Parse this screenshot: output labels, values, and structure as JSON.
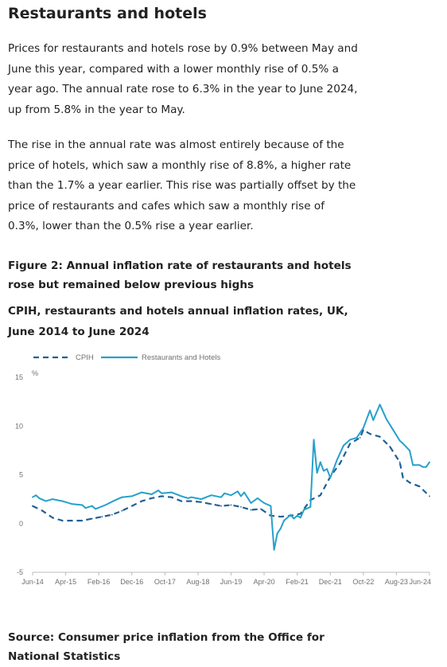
{
  "page": {
    "heading": "Restaurants and hotels",
    "paragraph1": "Prices for restaurants and hotels rose by 0.9% between May and June this year, compared with a lower monthly rise of 0.5% a year ago. The annual rate rose to 6.3% in the year to June 2024, up from 5.8% in the year to May.",
    "paragraph2": "The rise in the annual rate was almost entirely because of the price of hotels, which saw a monthly rise of 8.8%, a higher rate than the 1.7% a year earlier. This rise was partially offset by the price of restaurants and cafes which saw a monthly rise of 0.3%, lower than the 0.5% rise a year earlier.",
    "figure_title": "Figure 2: Annual inflation rate of restaurants and hotels rose but remained below previous highs",
    "figure_subtitle": "CPIH, restaurants and hotels annual inflation rates, UK, June 2014 to June 2024",
    "source": "Source: Consumer price inflation from the Office for National Statistics"
  },
  "chart_data": {
    "type": "line",
    "title": "",
    "xlabel": "",
    "ylabel": "%",
    "ylim": [
      -5,
      15
    ],
    "yticks": [
      -5,
      0,
      5,
      10,
      15
    ],
    "xticks": [
      "Jun-14",
      "Apr-15",
      "Feb-16",
      "Dec-16",
      "Oct-17",
      "Aug-18",
      "Jun-19",
      "Apr-20",
      "Feb-21",
      "Dec-21",
      "Oct-22",
      "Aug-23",
      "Jun-24"
    ],
    "x_start": "Jun-14",
    "x_end": "Jun-24",
    "grid": false,
    "legend_position": "top-left",
    "colors": {
      "cpih": "#206095",
      "restaurants": "#27a0cc",
      "axis": "#bbbbbb",
      "tick_text": "#707070"
    },
    "series": [
      {
        "name": "CPIH",
        "style": "dashed",
        "points": [
          [
            "Jun-14",
            1.8
          ],
          [
            "Sep-14",
            1.3
          ],
          [
            "Dec-14",
            0.6
          ],
          [
            "Mar-15",
            0.3
          ],
          [
            "Jun-15",
            0.3
          ],
          [
            "Sep-15",
            0.3
          ],
          [
            "Dec-15",
            0.5
          ],
          [
            "Mar-16",
            0.7
          ],
          [
            "Jun-16",
            0.9
          ],
          [
            "Sep-16",
            1.3
          ],
          [
            "Dec-16",
            1.8
          ],
          [
            "Mar-17",
            2.3
          ],
          [
            "Jun-17",
            2.6
          ],
          [
            "Sep-17",
            2.8
          ],
          [
            "Dec-17",
            2.7
          ],
          [
            "Mar-18",
            2.3
          ],
          [
            "Jun-18",
            2.3
          ],
          [
            "Sep-18",
            2.2
          ],
          [
            "Dec-18",
            2.0
          ],
          [
            "Mar-19",
            1.8
          ],
          [
            "Jun-19",
            1.9
          ],
          [
            "Sep-19",
            1.7
          ],
          [
            "Dec-19",
            1.4
          ],
          [
            "Mar-20",
            1.5
          ],
          [
            "Jun-20",
            0.8
          ],
          [
            "Sep-20",
            0.7
          ],
          [
            "Dec-20",
            0.8
          ],
          [
            "Mar-21",
            1.0
          ],
          [
            "Jun-21",
            2.4
          ],
          [
            "Sep-21",
            2.9
          ],
          [
            "Dec-21",
            4.8
          ],
          [
            "Mar-22",
            6.2
          ],
          [
            "Jun-22",
            8.2
          ],
          [
            "Sep-22",
            8.8
          ],
          [
            "Oct-22",
            9.6
          ],
          [
            "Dec-22",
            9.2
          ],
          [
            "Mar-23",
            8.9
          ],
          [
            "Jun-23",
            7.9
          ],
          [
            "Sep-23",
            6.3
          ],
          [
            "Oct-23",
            4.7
          ],
          [
            "Dec-23",
            4.2
          ],
          [
            "Mar-24",
            3.8
          ],
          [
            "Jun-24",
            2.8
          ]
        ]
      },
      {
        "name": "Restaurants and Hotels",
        "style": "solid",
        "points": [
          [
            "Jun-14",
            2.7
          ],
          [
            "Jul-14",
            2.9
          ],
          [
            "Aug-14",
            2.6
          ],
          [
            "Oct-14",
            2.3
          ],
          [
            "Dec-14",
            2.5
          ],
          [
            "Mar-15",
            2.3
          ],
          [
            "Jun-15",
            2.0
          ],
          [
            "Sep-15",
            1.9
          ],
          [
            "Oct-15",
            1.6
          ],
          [
            "Dec-15",
            1.8
          ],
          [
            "Jan-16",
            1.5
          ],
          [
            "Apr-16",
            1.9
          ],
          [
            "Jul-16",
            2.4
          ],
          [
            "Sep-16",
            2.7
          ],
          [
            "Dec-16",
            2.8
          ],
          [
            "Mar-17",
            3.2
          ],
          [
            "Jun-17",
            3.0
          ],
          [
            "Aug-17",
            3.4
          ],
          [
            "Sep-17",
            3.1
          ],
          [
            "Dec-17",
            3.2
          ],
          [
            "Mar-18",
            2.8
          ],
          [
            "May-18",
            2.6
          ],
          [
            "Jun-18",
            2.7
          ],
          [
            "Sep-18",
            2.5
          ],
          [
            "Dec-18",
            2.9
          ],
          [
            "Mar-19",
            2.7
          ],
          [
            "Apr-19",
            3.1
          ],
          [
            "Jun-19",
            2.9
          ],
          [
            "Aug-19",
            3.3
          ],
          [
            "Sep-19",
            2.8
          ],
          [
            "Oct-19",
            3.2
          ],
          [
            "Dec-19",
            2.1
          ],
          [
            "Feb-20",
            2.6
          ],
          [
            "Apr-20",
            2.1
          ],
          [
            "Jun-20",
            1.8
          ],
          [
            "Jul-20",
            -2.7
          ],
          [
            "Aug-20",
            -1.0
          ],
          [
            "Sep-20",
            -0.5
          ],
          [
            "Oct-20",
            0.3
          ],
          [
            "Dec-20",
            0.9
          ],
          [
            "Jan-21",
            0.5
          ],
          [
            "Feb-21",
            0.8
          ],
          [
            "Mar-21",
            0.6
          ],
          [
            "Apr-21",
            1.4
          ],
          [
            "Jun-21",
            1.7
          ],
          [
            "Jul-21",
            8.6
          ],
          [
            "Aug-21",
            5.2
          ],
          [
            "Sep-21",
            6.3
          ],
          [
            "Oct-21",
            5.4
          ],
          [
            "Nov-21",
            5.6
          ],
          [
            "Dec-21",
            4.7
          ],
          [
            "Feb-22",
            6.5
          ],
          [
            "Apr-22",
            8.0
          ],
          [
            "Jun-22",
            8.6
          ],
          [
            "Aug-22",
            8.8
          ],
          [
            "Oct-22",
            9.8
          ],
          [
            "Dec-22",
            11.6
          ],
          [
            "Jan-23",
            10.6
          ],
          [
            "Mar-23",
            12.2
          ],
          [
            "May-23",
            10.7
          ],
          [
            "Jul-23",
            9.6
          ],
          [
            "Sep-23",
            8.5
          ],
          [
            "Oct-23",
            8.2
          ],
          [
            "Dec-23",
            7.5
          ],
          [
            "Jan-24",
            6.0
          ],
          [
            "Mar-24",
            6.0
          ],
          [
            "Apr-24",
            5.8
          ],
          [
            "May-24",
            5.8
          ],
          [
            "Jun-24",
            6.3
          ]
        ]
      }
    ]
  }
}
